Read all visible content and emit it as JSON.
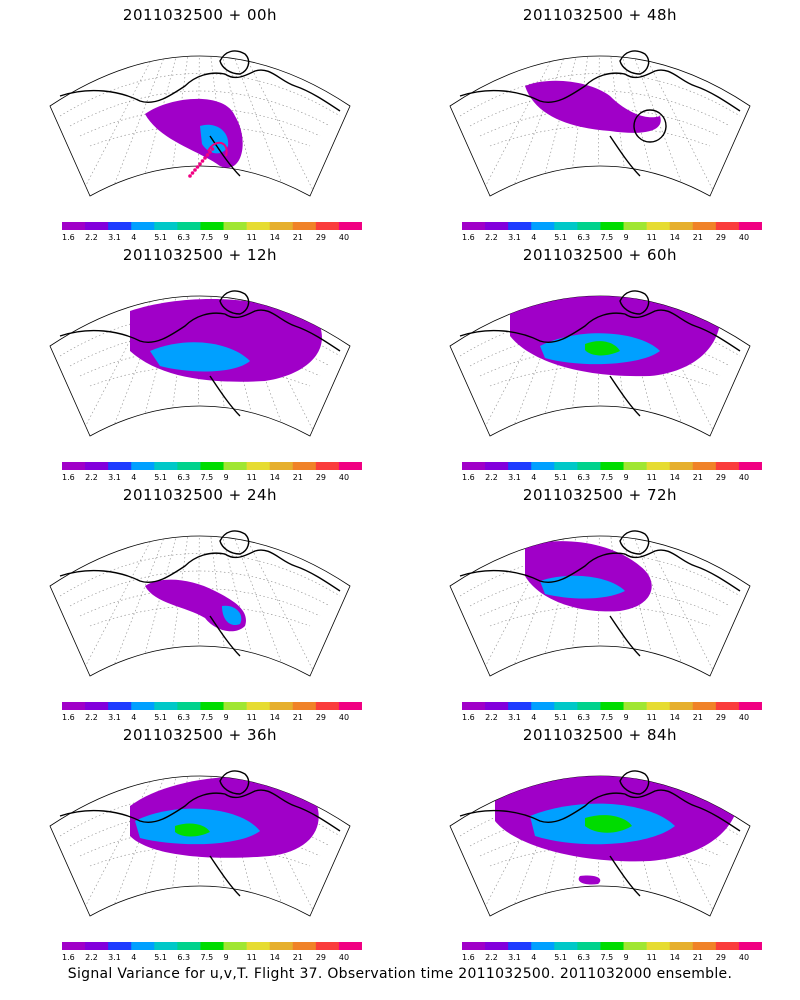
{
  "panels": [
    {
      "title": "2011032500 + 00h",
      "variant": 0
    },
    {
      "title": "2011032500 + 48h",
      "variant": 4
    },
    {
      "title": "2011032500 + 12h",
      "variant": 1
    },
    {
      "title": "2011032500 + 60h",
      "variant": 5
    },
    {
      "title": "2011032500 + 24h",
      "variant": 2
    },
    {
      "title": "2011032500 + 72h",
      "variant": 6
    },
    {
      "title": "2011032500 + 36h",
      "variant": 3
    },
    {
      "title": "2011032500 + 84h",
      "variant": 7
    }
  ],
  "colorbar": {
    "labels": [
      "1.6",
      "2.2",
      "3.1",
      "4",
      "5.1",
      "6.3",
      "7.5",
      "9",
      "11",
      "14",
      "21",
      "29",
      "40"
    ],
    "colors": [
      "#a000c8",
      "#8200dc",
      "#1e3cff",
      "#00a0ff",
      "#00c8c8",
      "#00d28c",
      "#00dc00",
      "#a0e632",
      "#e6dc32",
      "#e6af2d",
      "#f08228",
      "#fa3c3c",
      "#f00082"
    ]
  },
  "footer": "Signal Variance for u,v,T. Flight 37. Observation time 2011032500. 2011032000 ensemble."
}
